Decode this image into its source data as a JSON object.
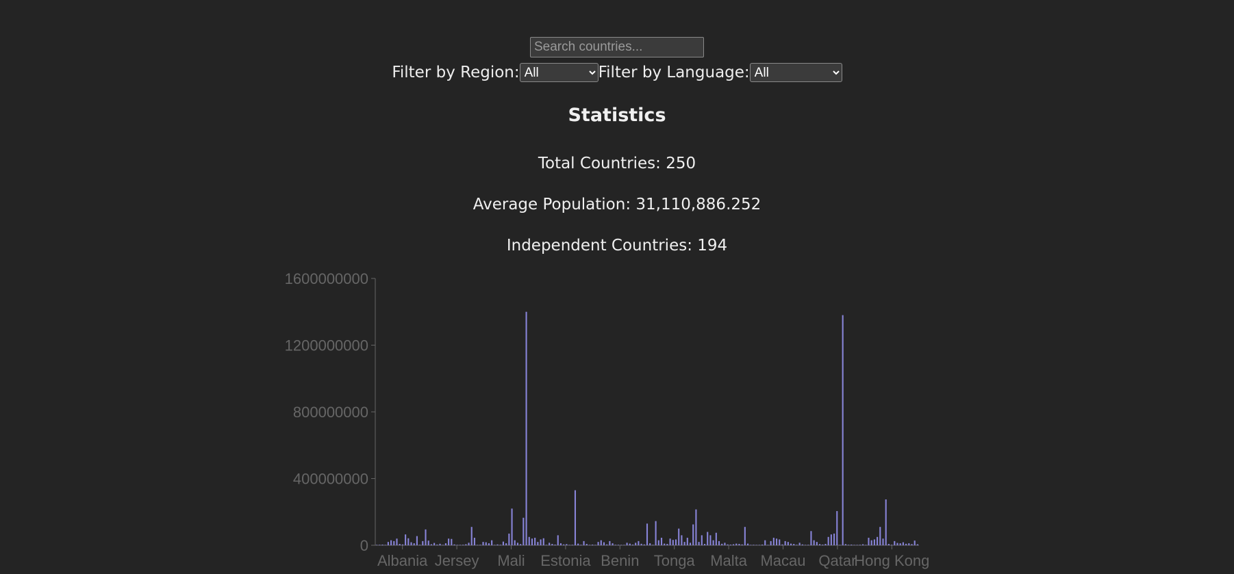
{
  "search": {
    "placeholder": "Search countries..."
  },
  "filters": {
    "region_label": "Filter by Region:",
    "region_value": "All",
    "language_label": "Filter by Language:",
    "language_value": "All"
  },
  "stats": {
    "title": "Statistics",
    "total": "Total Countries: 250",
    "average": "Average Population: 31,110,886.252",
    "independent": "Independent Countries: 194"
  },
  "colors": {
    "bar": "#8884d8",
    "axis": "#666666",
    "background": "#242424"
  },
  "chart_data": {
    "type": "bar",
    "title": "",
    "xlabel": "",
    "ylabel": "",
    "ylim": [
      0,
      1600000000
    ],
    "y_ticks": [
      0,
      400000000,
      800000000,
      1200000000,
      1600000000
    ],
    "y_tick_labels": [
      "0",
      "400000000",
      "800000000",
      "1200000000",
      "1600000000"
    ],
    "x_tick_labels": [
      "Albania",
      "Jersey",
      "Mali",
      "Estonia",
      "Benin",
      "Tonga",
      "Malta",
      "Macau",
      "Qatar",
      "Hong Kong"
    ],
    "values": [
      2000000,
      3000000,
      4000000,
      1000000,
      20000000,
      30000000,
      25000000,
      40000000,
      8000000,
      5000000,
      65000000,
      42000000,
      18000000,
      12000000,
      55000000,
      3000000,
      25000000,
      95000000,
      28000000,
      6000000,
      14000000,
      4000000,
      9000000,
      2000000,
      12000000,
      40000000,
      38000000,
      5000000,
      2000000,
      1000000,
      3000000,
      6000000,
      15000000,
      110000000,
      45000000,
      0,
      3000000,
      20000000,
      18000000,
      12000000,
      30000000,
      2000000,
      5000000,
      3000000,
      22000000,
      12000000,
      70000000,
      220000000,
      30000000,
      15000000,
      7000000,
      165000000,
      1400000000,
      50000000,
      40000000,
      45000000,
      20000000,
      35000000,
      42000000,
      1000000,
      15000000,
      8000000,
      4000000,
      60000000,
      12000000,
      5000000,
      7000000,
      2000000,
      3000000,
      330000000,
      10000000,
      3000000,
      25000000,
      8000000,
      1500000,
      4000000,
      1000000,
      20000000,
      30000000,
      18000000,
      5000000,
      25000000,
      12000000,
      3000000,
      3000000,
      1000000,
      1000000,
      15000000,
      10000000,
      4000000,
      15000000,
      25000000,
      9000000,
      5000000,
      130000000,
      12000000,
      3000000,
      145000000,
      30000000,
      45000000,
      10000000,
      8000000,
      40000000,
      32000000,
      35000000,
      100000000,
      60000000,
      20000000,
      45000000,
      15000000,
      125000000,
      215000000,
      20000000,
      60000000,
      8000000,
      80000000,
      60000000,
      30000000,
      75000000,
      25000000,
      9000000,
      15000000,
      5000000,
      4000000,
      6000000,
      10000000,
      8000000,
      5000000,
      110000000,
      10000000,
      2000000,
      3000000,
      1000000,
      2000000,
      4000000,
      30000000,
      1000000,
      25000000,
      45000000,
      40000000,
      35000000,
      5000000,
      25000000,
      20000000,
      10000000,
      8000000,
      3000000,
      15000000,
      5000000,
      1000000,
      3000000,
      85000000,
      30000000,
      20000000,
      7000000,
      4000000,
      8000000,
      50000000,
      65000000,
      70000000,
      205000000,
      2000000,
      1380000000,
      7000000,
      3000000,
      4000000,
      1000000,
      1000000,
      3000000,
      6000000,
      2000000,
      45000000,
      30000000,
      35000000,
      50000000,
      110000000,
      40000000,
      275000000,
      8000000,
      3000000,
      25000000,
      14000000,
      12000000,
      18000000,
      9000000,
      12000000,
      7000000,
      28000000,
      6000000
    ]
  }
}
